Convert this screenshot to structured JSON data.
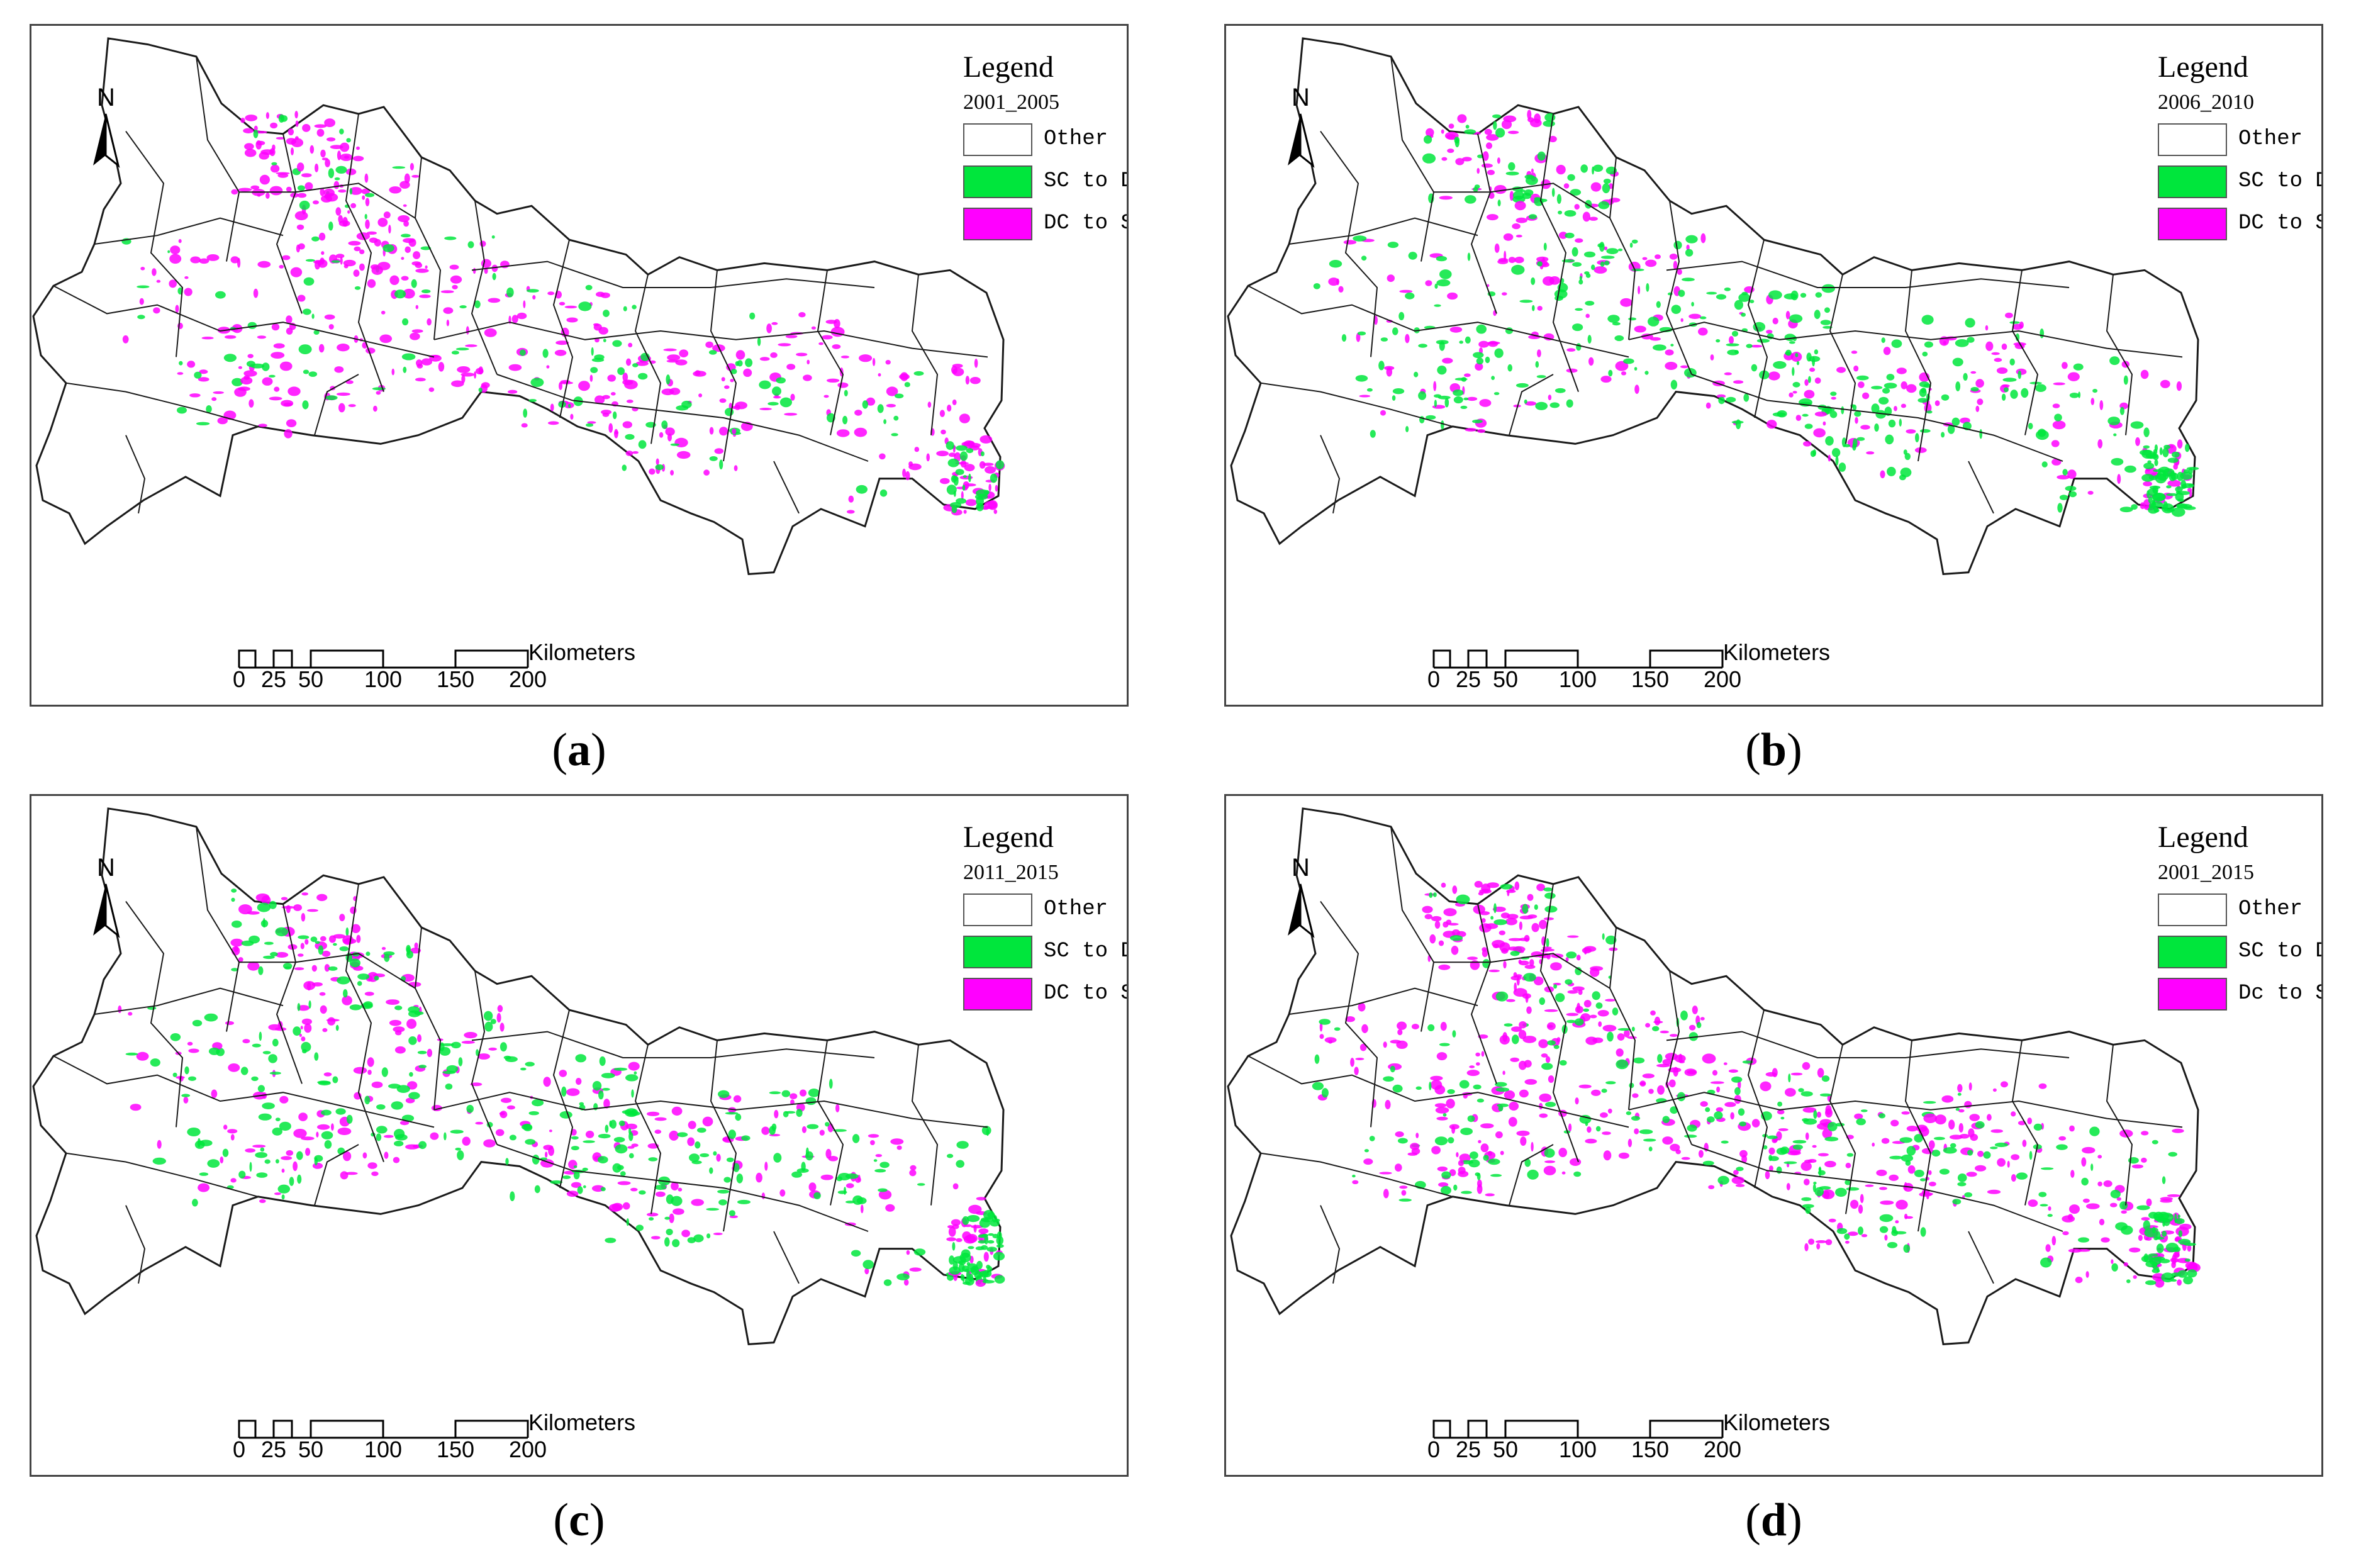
{
  "panels": [
    {
      "id": "a",
      "caption": "a",
      "legend_title": "Legend",
      "legend_period": "2001_2005",
      "legend_items": [
        {
          "label": "Other",
          "color": "#ffffff"
        },
        {
          "label": "SC to DC",
          "color": "#00e63c"
        },
        {
          "label": "DC to SC",
          "color": "#ff00ff"
        }
      ],
      "intensity": {
        "green": 0.35,
        "magenta": 0.85
      }
    },
    {
      "id": "b",
      "caption": "b",
      "legend_title": "Legend",
      "legend_period": "2006_2010",
      "legend_items": [
        {
          "label": "Other",
          "color": "#ffffff"
        },
        {
          "label": "SC to DC",
          "color": "#00e63c"
        },
        {
          "label": "DC to SC",
          "color": "#ff00ff"
        }
      ],
      "intensity": {
        "green": 0.85,
        "magenta": 0.5
      }
    },
    {
      "id": "c",
      "caption": "c",
      "legend_title": "Legend",
      "legend_period": "2011_2015",
      "legend_items": [
        {
          "label": "Other",
          "color": "#ffffff"
        },
        {
          "label": "SC to DC",
          "color": "#00e63c"
        },
        {
          "label": "DC to SC",
          "color": "#ff00ff"
        }
      ],
      "intensity": {
        "green": 0.75,
        "magenta": 0.55
      }
    },
    {
      "id": "d",
      "caption": "d",
      "legend_title": "Legend",
      "legend_period": "2001_2015",
      "legend_items": [
        {
          "label": "Other",
          "color": "#ffffff"
        },
        {
          "label": "SC to DC",
          "color": "#00e63c"
        },
        {
          "label": "Dc to SC",
          "color": "#ff00ff"
        }
      ],
      "intensity": {
        "green": 0.6,
        "magenta": 0.95
      }
    }
  ],
  "north_arrow": {
    "label": "N",
    "icon": "north-arrow-icon"
  },
  "scale_bar": {
    "unit": "Kilometers",
    "ticks": [
      "0",
      "25",
      "50",
      "100",
      "150",
      "200"
    ]
  },
  "colors": {
    "sc_to_dc": "#00e63c",
    "dc_to_sc": "#ff00ff",
    "boundary": "#1a1a1a"
  }
}
